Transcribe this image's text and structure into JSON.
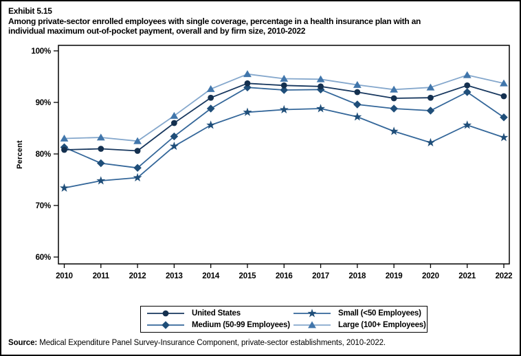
{
  "header": {
    "exhibit": "Exhibit 5.15",
    "title_line1": "Among private-sector enrolled employees with single coverage, percentage in a health insurance plan with an",
    "title_line2": "individual maximum out-of-pocket payment, overall and by firm size, 2010-2022"
  },
  "chart_data": {
    "type": "line",
    "title": "",
    "xlabel": "",
    "ylabel": "Percent",
    "ylim": [
      60,
      100
    ],
    "grid": false,
    "legend_position": "bottom",
    "x": [
      "2010",
      "2011",
      "2012",
      "2013",
      "2014",
      "2015",
      "2016",
      "2017",
      "2018",
      "2019",
      "2020",
      "2021",
      "2022"
    ],
    "y_tick_values": [
      60,
      70,
      80,
      90,
      100
    ],
    "y_tick_labels": [
      "60%",
      "70%",
      "80%",
      "90%",
      "100%"
    ],
    "series": [
      {
        "name": "United States",
        "marker": "circle",
        "color": "#14304F",
        "line_color": "#17375E",
        "values": [
          80.8,
          81.0,
          80.6,
          86.0,
          90.9,
          93.7,
          93.3,
          93.1,
          92.0,
          90.8,
          90.9,
          93.3,
          91.2
        ]
      },
      {
        "name": "Medium (50-99 Employees)",
        "marker": "diamond",
        "color": "#1F4E79",
        "line_color": "#336699",
        "values": [
          81.3,
          78.2,
          77.3,
          83.4,
          88.8,
          92.9,
          92.4,
          92.5,
          89.6,
          88.8,
          88.4,
          92.0,
          87.1
        ]
      },
      {
        "name": "Small (<50 Employees)",
        "marker": "star",
        "color": "#1F4E79",
        "line_color": "#336699",
        "values": [
          73.4,
          74.8,
          75.4,
          81.5,
          85.6,
          88.1,
          88.6,
          88.8,
          87.2,
          84.4,
          82.2,
          85.6,
          83.2
        ]
      },
      {
        "name": "Large (100+ Employees)",
        "marker": "triangle",
        "color": "#4176AB",
        "line_color": "#84A7CC",
        "values": [
          83.0,
          83.2,
          82.5,
          87.4,
          92.6,
          95.5,
          94.6,
          94.5,
          93.4,
          92.5,
          92.9,
          95.3,
          93.7
        ]
      }
    ]
  },
  "source": {
    "label": "Source:",
    "text": " Medical Expenditure Panel Survey-Insurance Component, private-sector establishments, 2010-2022."
  }
}
